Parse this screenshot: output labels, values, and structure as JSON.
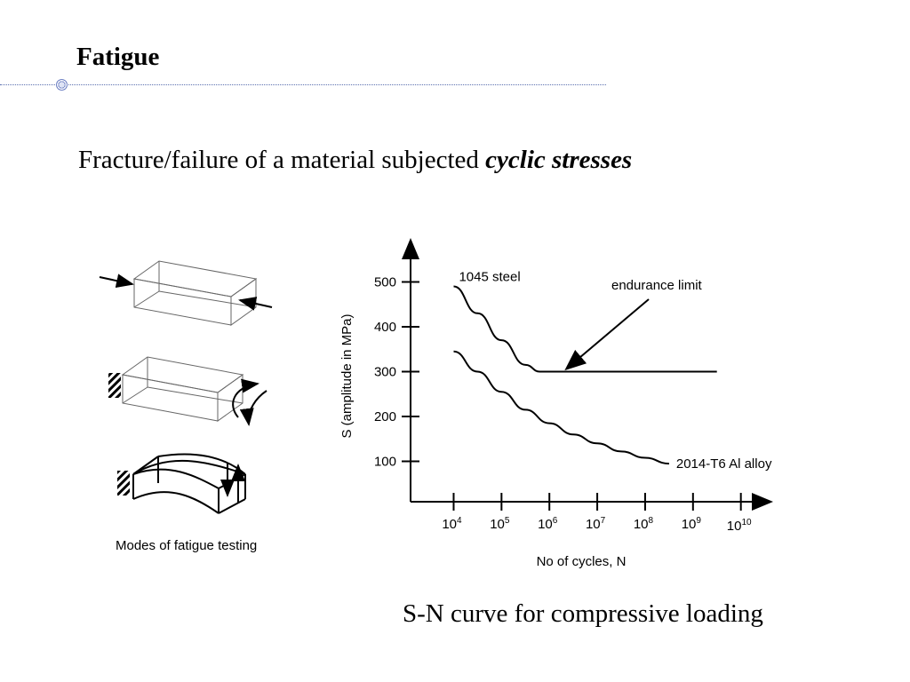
{
  "slide": {
    "title": "Fatigue",
    "subtitle_plain": "Fracture/failure of a material subjected ",
    "subtitle_emph": "cyclic stresses",
    "caption": "S-N curve for compressive loading",
    "modes_caption": "Modes of fatigue testing"
  },
  "chart_data": {
    "type": "line",
    "xlabel": "No of cycles, N",
    "ylabel": "S (amplitude in MPa)",
    "x_scale": "log10",
    "xlim": [
      3.1,
      10.6
    ],
    "ylim": [
      10,
      590
    ],
    "x_ticks": [
      4,
      5,
      6,
      7,
      8,
      9,
      10
    ],
    "y_ticks": [
      100,
      200,
      300,
      400,
      500
    ],
    "grid": false,
    "series": [
      {
        "name": "1045 steel",
        "x": [
          4.0,
          4.5,
          5.0,
          5.5,
          5.8,
          6.5,
          7.0,
          8.0,
          9.0,
          9.5
        ],
        "y": [
          490,
          430,
          370,
          315,
          300,
          300,
          300,
          300,
          300,
          300
        ]
      },
      {
        "name": "2014-T6 Al alloy",
        "x": [
          4.0,
          4.5,
          5.0,
          5.5,
          6.0,
          6.5,
          7.0,
          7.5,
          8.0,
          8.5
        ],
        "y": [
          345,
          300,
          255,
          215,
          185,
          160,
          140,
          122,
          108,
          95
        ]
      }
    ],
    "annotations": [
      {
        "text": "endurance limit",
        "points_to_x": 6.3,
        "points_to_y": 300
      }
    ]
  }
}
